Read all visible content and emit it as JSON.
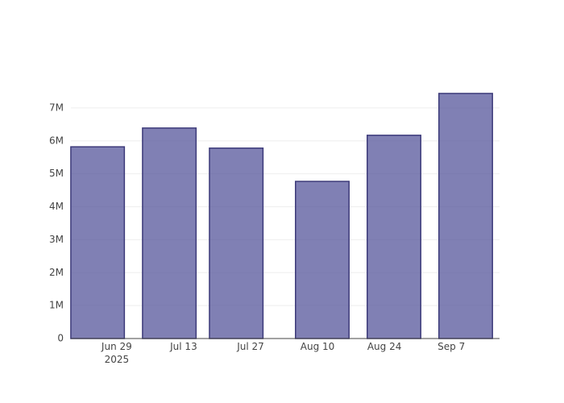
{
  "chart_data": {
    "type": "bar",
    "x": [
      "2025-06-25",
      "2025-07-10",
      "2025-07-24",
      "2025-08-11",
      "2025-08-26",
      "2025-09-10"
    ],
    "values": [
      5820000,
      6390000,
      5780000,
      4770000,
      6170000,
      7440000
    ],
    "color": "#56559b",
    "line_color": "#3d3b7a",
    "opacity": 0.75,
    "xlim": [
      "2025-06-19T10:00",
      "2025-09-17T02:00"
    ],
    "xticks": [
      {
        "value": "2025-06-29",
        "label": "Jun 29\n2025"
      },
      {
        "value": "2025-07-13",
        "label": "Jul 13"
      },
      {
        "value": "2025-07-27",
        "label": "Jul 27"
      },
      {
        "value": "2025-08-10",
        "label": "Aug 10"
      },
      {
        "value": "2025-08-24",
        "label": "Aug 24"
      },
      {
        "value": "2025-09-07",
        "label": "Sep 7"
      }
    ],
    "ylim": [
      0,
      7830000
    ],
    "yticks": [
      0,
      {
        "value": 1000000,
        "label": "1M"
      },
      {
        "value": 2000000,
        "label": "2M"
      },
      {
        "value": 3000000,
        "label": "3M"
      },
      {
        "value": 4000000,
        "label": "4M"
      },
      {
        "value": 5000000,
        "label": "5M"
      },
      {
        "value": 6000000,
        "label": "6M"
      },
      {
        "value": 7000000,
        "label": "7M"
      }
    ],
    "grid": true
  }
}
